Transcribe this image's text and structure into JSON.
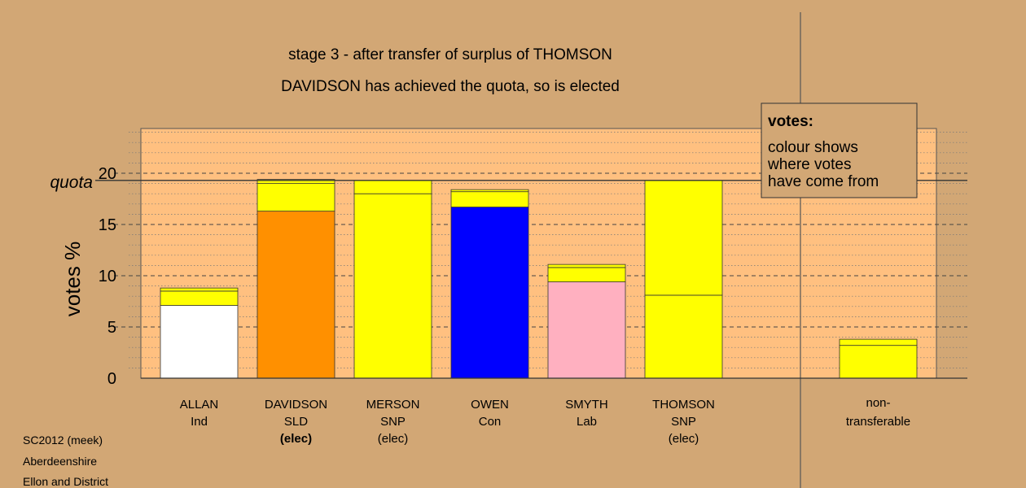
{
  "chart_data": {
    "type": "bar",
    "title": "stage 3 - after transfer of surplus of THOMSON",
    "subtitle": "DAVIDSON has achieved the quota, so is elected",
    "ylabel": "votes %",
    "ylim": [
      0,
      24.5
    ],
    "yticks": [
      0,
      5,
      10,
      15,
      20
    ],
    "quota": 19.3,
    "quota_label": "quota",
    "grid": true,
    "legend_position": "top-right",
    "legend": {
      "title": "votes:",
      "lines": [
        "colour shows",
        "where votes",
        "have come from"
      ]
    },
    "colors": {
      "ALLAN": "#ffffff",
      "DAVIDSON": "#ff9000",
      "SNP": "#ffff00",
      "OWEN": "#0000ff",
      "SMYTH": "#ffb0c0"
    },
    "candidates": [
      {
        "name": "ALLAN",
        "party": "Ind",
        "status": "",
        "segments": [
          {
            "from": "ALLAN",
            "value": 7.1,
            "color": "#ffffff"
          },
          {
            "from": "SNP",
            "value": 1.4,
            "color": "#ffff00"
          },
          {
            "from": "other",
            "value": 0.3,
            "color": "#ffff00"
          }
        ]
      },
      {
        "name": "DAVIDSON",
        "party": "SLD",
        "status": "(elec)",
        "segments": [
          {
            "from": "DAVIDSON",
            "value": 16.3,
            "color": "#ff9000"
          },
          {
            "from": "SNP",
            "value": 2.7,
            "color": "#ffff00"
          },
          {
            "from": "other",
            "value": 0.4,
            "color": "#ffff00"
          }
        ]
      },
      {
        "name": "MERSON",
        "party": "SNP",
        "status": "(elec)",
        "segments": [
          {
            "from": "MERSON",
            "value": 18.0,
            "color": "#ffff00"
          },
          {
            "from": "SNP",
            "value": 1.3,
            "color": "#ffff00"
          }
        ]
      },
      {
        "name": "OWEN",
        "party": "Con",
        "status": "",
        "segments": [
          {
            "from": "OWEN",
            "value": 16.7,
            "color": "#0000ff"
          },
          {
            "from": "SNP",
            "value": 1.5,
            "color": "#ffff00"
          },
          {
            "from": "other",
            "value": 0.2,
            "color": "#ffff00"
          }
        ]
      },
      {
        "name": "SMYTH",
        "party": "Lab",
        "status": "",
        "segments": [
          {
            "from": "SMYTH",
            "value": 9.4,
            "color": "#ffb0c0"
          },
          {
            "from": "SNP",
            "value": 1.4,
            "color": "#ffff00"
          },
          {
            "from": "other",
            "value": 0.3,
            "color": "#ffff00"
          }
        ]
      },
      {
        "name": "THOMSON",
        "party": "SNP",
        "status": "(elec)",
        "segments": [
          {
            "from": "THOMSON",
            "value": 8.1,
            "color": "#ffff00"
          },
          {
            "from": "SNP",
            "value": 11.2,
            "color": "#ffff00"
          }
        ]
      }
    ],
    "nontransferable": {
      "label_line1": "non-",
      "label_line2": "transferable",
      "segments": [
        {
          "from": "SNP",
          "value": 3.2,
          "color": "#ffff00"
        },
        {
          "from": "other",
          "value": 0.6,
          "color": "#ffff00"
        }
      ]
    }
  },
  "footer": {
    "line1": "SC2012 (meek)",
    "line2": "Aberdeenshire",
    "line3": "Ellon and District"
  }
}
